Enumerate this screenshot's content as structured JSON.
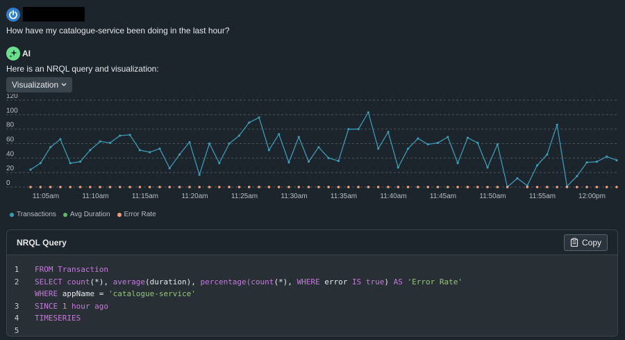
{
  "user": {
    "question": "How have my catalogue-service been doing in the last hour?",
    "avatar_icon": "power-icon",
    "avatar_color": "#2f7fd1"
  },
  "assistant": {
    "label": "AI",
    "message": "Here is an NRQL query and visualization:",
    "badge_icon": "sparkle-icon",
    "badge_color": "#6be08d"
  },
  "view_selector": {
    "label": "Visualization"
  },
  "chart_data": {
    "type": "line",
    "title": "",
    "x_labels": [
      "11:05am",
      "11:10am",
      "11:15am",
      "11:20am",
      "11:25am",
      "11:30am",
      "11:35am",
      "11:40am",
      "11:45am",
      "11:50am",
      "11:55am",
      "12:00pm"
    ],
    "y_ticks": [
      0,
      20,
      40,
      60,
      80,
      100,
      120
    ],
    "ylim": [
      0,
      120
    ],
    "grid": "horizontal dashed",
    "legend_position": "bottom-left",
    "series": [
      {
        "name": "Transactions",
        "color": "#3a9bb6",
        "values": [
          24,
          33,
          55,
          66,
          33,
          35,
          51,
          63,
          61,
          71,
          72,
          51,
          48,
          53,
          26,
          45,
          62,
          17,
          60,
          33,
          60,
          71,
          89,
          96,
          51,
          73,
          34,
          69,
          35,
          55,
          40,
          36,
          80,
          80,
          103,
          53,
          76,
          27,
          53,
          67,
          59,
          61,
          69,
          33,
          68,
          61,
          27,
          59,
          0,
          12,
          2,
          30,
          45,
          86,
          1,
          15,
          34,
          35,
          42,
          37
        ]
      },
      {
        "name": "Avg Duration",
        "color": "#60b96a",
        "values": []
      },
      {
        "name": "Error Rate",
        "color": "#f3a07a",
        "values": [
          0,
          0,
          0,
          0,
          0,
          0,
          0,
          0,
          0,
          0,
          0,
          0,
          0,
          0,
          0,
          0,
          0,
          0,
          0,
          0,
          0,
          0,
          0,
          0,
          0,
          0,
          0,
          0,
          0,
          0,
          0,
          0,
          0,
          0,
          0,
          0,
          0,
          0,
          0,
          0,
          0,
          0,
          0,
          0,
          0,
          0,
          0,
          0,
          0,
          0,
          0,
          0,
          0,
          0,
          0,
          0,
          0,
          0,
          0,
          0
        ]
      }
    ]
  },
  "query_panel": {
    "title": "NRQL Query",
    "copy_label": "Copy",
    "line_numbers": [
      "1",
      "2",
      "",
      "3",
      "4",
      "5"
    ]
  },
  "code": {
    "l1": {
      "kw": "FROM Transaction"
    },
    "l2": {
      "a": "SELECT count",
      "b": "(*), ",
      "c": "average",
      "d": "(duration), ",
      "e": "percentage",
      "f": "(count",
      "g": "(*), ",
      "h": "WHERE",
      "i": " error ",
      "j": "IS",
      "k": "true",
      "l": ") ",
      "m": "AS",
      "n": "'Error Rate'"
    },
    "l2b": {
      "a": "WHERE",
      "b": " appName = ",
      "c": "'catalogue-service'"
    },
    "l3": {
      "a": "SINCE",
      "b": "1",
      "c": "hour ago"
    },
    "l4": {
      "a": "TIMESERIES"
    }
  }
}
